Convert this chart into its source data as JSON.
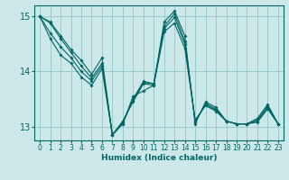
{
  "xlabel": "Humidex (Indice chaleur)",
  "bg_color": "#cce8e8",
  "grid_color": "#99cccc",
  "line_color": "#006666",
  "xlim": [
    -0.5,
    23.5
  ],
  "ylim": [
    12.75,
    15.2
  ],
  "yticks": [
    13,
    14,
    15
  ],
  "xticks": [
    0,
    1,
    2,
    3,
    4,
    5,
    6,
    7,
    8,
    9,
    10,
    11,
    12,
    13,
    14,
    15,
    16,
    17,
    18,
    19,
    20,
    21,
    22,
    23
  ],
  "series": [
    [
      15.0,
      14.9,
      14.65,
      14.4,
      14.2,
      13.95,
      14.25,
      12.85,
      13.05,
      13.55,
      13.65,
      13.75,
      14.9,
      15.1,
      14.65,
      13.05,
      13.45,
      13.35,
      13.1,
      13.05,
      13.05,
      13.15,
      13.4,
      13.05
    ],
    [
      15.0,
      14.88,
      14.6,
      14.35,
      14.1,
      13.88,
      14.15,
      12.85,
      13.05,
      13.5,
      13.82,
      13.78,
      14.82,
      15.05,
      14.55,
      13.08,
      13.42,
      13.32,
      13.1,
      13.05,
      13.05,
      13.12,
      13.38,
      13.05
    ],
    [
      15.0,
      14.7,
      14.45,
      14.25,
      14.0,
      13.83,
      14.1,
      12.85,
      13.08,
      13.47,
      13.8,
      13.78,
      14.78,
      14.98,
      14.5,
      13.1,
      13.4,
      13.3,
      13.1,
      13.05,
      13.05,
      13.1,
      13.35,
      13.05
    ],
    [
      15.0,
      14.6,
      14.3,
      14.15,
      13.9,
      13.75,
      14.05,
      12.85,
      13.1,
      13.45,
      13.78,
      13.75,
      14.72,
      14.88,
      14.42,
      13.12,
      13.38,
      13.28,
      13.1,
      13.05,
      13.05,
      13.08,
      13.32,
      13.05
    ]
  ]
}
